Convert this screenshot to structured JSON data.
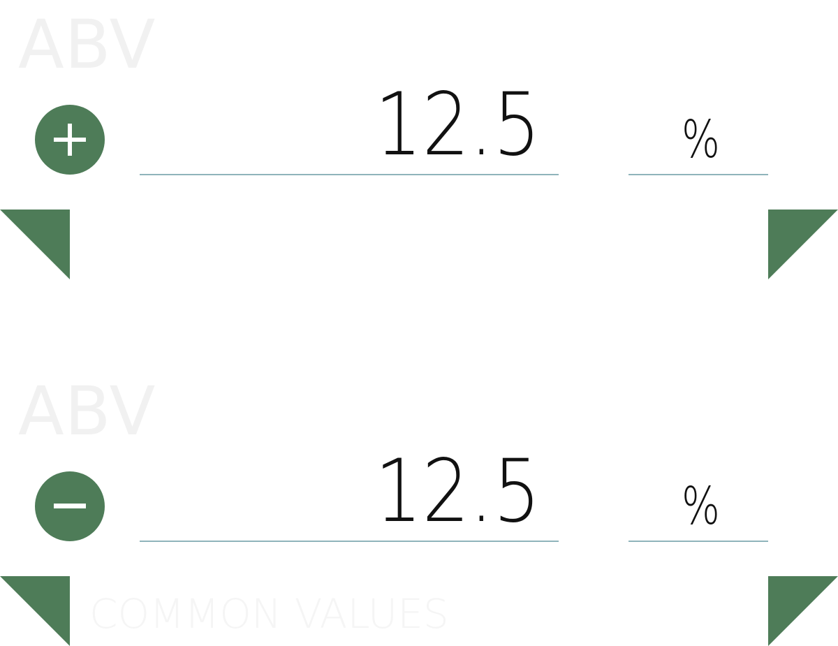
{
  "colors": {
    "accent": "#4e7c58",
    "underline": "#8fb4bb",
    "label": "#f1f1f1",
    "value_text": "#111111"
  },
  "sections": [
    {
      "label": "ABV",
      "action_icon": "plus-icon",
      "value": "12.5",
      "unit": "%",
      "corner_left_icon": "triangle-corner-left-icon",
      "corner_right_icon": "triangle-corner-right-icon"
    },
    {
      "label": "ABV",
      "action_icon": "minus-icon",
      "value": "12.5",
      "unit": "%",
      "footer_label": "COMMON VALUES",
      "corner_left_icon": "triangle-corner-left-icon",
      "corner_right_icon": "triangle-corner-right-icon"
    }
  ]
}
